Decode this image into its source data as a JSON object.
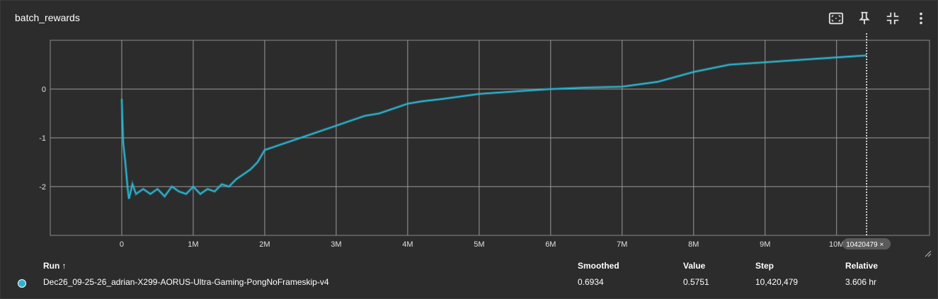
{
  "card": {
    "title": "batch_rewards"
  },
  "toolbar": {
    "icons": [
      "fit-domain-icon",
      "pin-icon",
      "collapse-icon",
      "more-vert-icon"
    ]
  },
  "chart_data": {
    "type": "line",
    "xlim": [
      -1000000,
      11300000
    ],
    "ylim": [
      -3,
      1
    ],
    "x_ticks": [
      0,
      1000000,
      2000000,
      3000000,
      4000000,
      5000000,
      6000000,
      7000000,
      8000000,
      9000000,
      10000000
    ],
    "x_tick_labels": [
      "0",
      "1M",
      "2M",
      "3M",
      "4M",
      "5M",
      "6M",
      "7M",
      "8M",
      "9M",
      "10M"
    ],
    "y_ticks": [
      -2,
      -1,
      0
    ],
    "y_tick_labels": [
      "-2",
      "-1",
      "0"
    ],
    "grid": true,
    "series": [
      {
        "color": "#2ab4cf",
        "x": [
          0,
          20000,
          50000,
          80000,
          100000,
          150000,
          200000,
          300000,
          400000,
          500000,
          600000,
          700000,
          800000,
          900000,
          1000000,
          1100000,
          1200000,
          1300000,
          1400000,
          1500000,
          1600000,
          1700000,
          1800000,
          1900000,
          2000000,
          2200000,
          2400000,
          2600000,
          2800000,
          3000000,
          3200000,
          3400000,
          3600000,
          3800000,
          4000000,
          4200000,
          4500000,
          5000000,
          5500000,
          6000000,
          6500000,
          7000000,
          7500000,
          8000000,
          8500000,
          9000000,
          9500000,
          10000000,
          10420479
        ],
        "values": [
          -0.2,
          -1.1,
          -1.5,
          -2.0,
          -2.25,
          -1.95,
          -2.15,
          -2.05,
          -2.15,
          -2.05,
          -2.2,
          -2.0,
          -2.1,
          -2.15,
          -2.0,
          -2.15,
          -2.05,
          -2.1,
          -1.95,
          -2.0,
          -1.85,
          -1.75,
          -1.65,
          -1.5,
          -1.25,
          -1.15,
          -1.05,
          -0.95,
          -0.85,
          -0.75,
          -0.65,
          -0.55,
          -0.5,
          -0.4,
          -0.3,
          -0.25,
          -0.2,
          -0.1,
          -0.05,
          0.0,
          0.03,
          0.05,
          0.15,
          0.35,
          0.5,
          0.55,
          0.6,
          0.65,
          0.69
        ]
      }
    ],
    "current_step_label": "10420479"
  },
  "table": {
    "headers": {
      "run": "Run ↑",
      "smoothed": "Smoothed",
      "value": "Value",
      "step": "Step",
      "relative": "Relative"
    },
    "rows": [
      {
        "color": "#2ab4cf",
        "run": "Dec26_09-25-26_adrian-X299-AORUS-Ultra-Gaming-PongNoFrameskip-v4",
        "smoothed": "0.6934",
        "value": "0.5751",
        "step": "10,420,479",
        "relative": "3.606 hr"
      }
    ]
  }
}
